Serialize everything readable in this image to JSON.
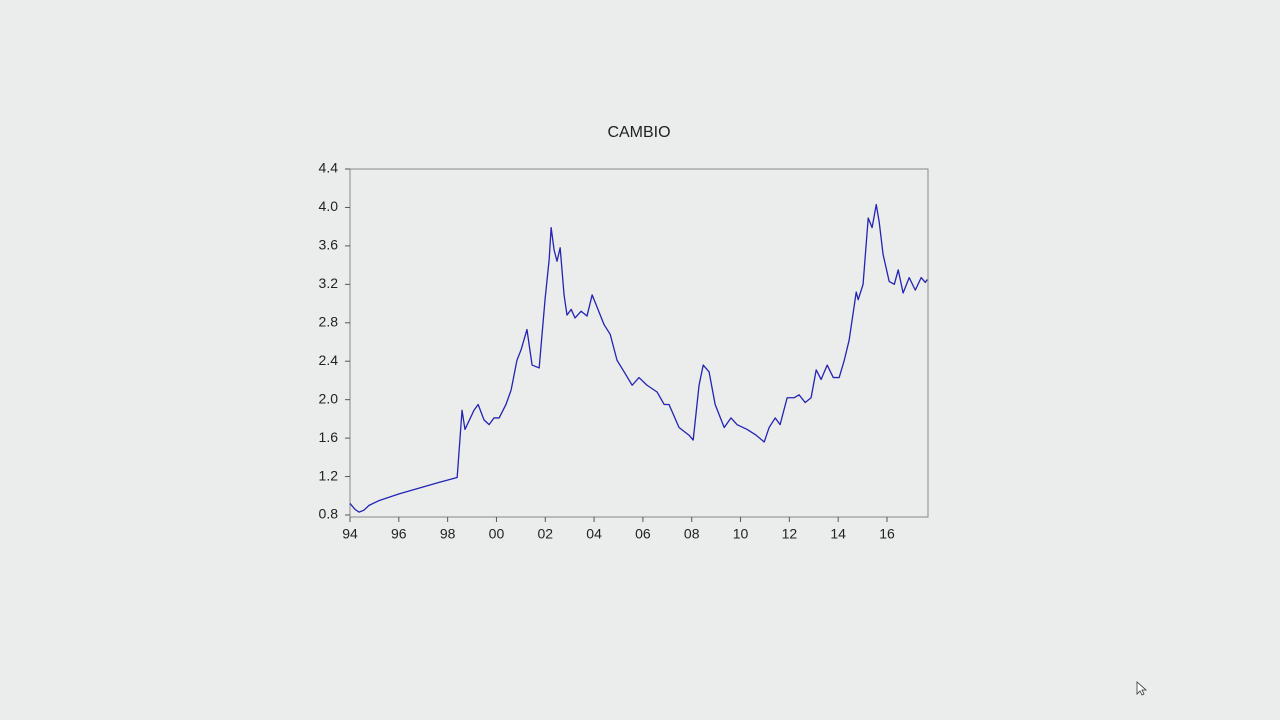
{
  "chart_data": {
    "type": "line",
    "title": "CAMBIO",
    "x": [
      1994.0,
      1994.2,
      1994.37,
      1994.57,
      1994.78,
      1995.19,
      1996.01,
      1996.83,
      1997.65,
      1998.39,
      1998.59,
      1998.71,
      1999.08,
      1999.25,
      1999.49,
      1999.7,
      1999.9,
      2000.11,
      2000.39,
      2000.6,
      2000.84,
      2001.01,
      2001.25,
      2001.46,
      2001.75,
      2001.99,
      2002.16,
      2002.24,
      2002.36,
      2002.48,
      2002.61,
      2002.77,
      2002.89,
      2003.06,
      2003.22,
      2003.47,
      2003.71,
      2003.92,
      2004.08,
      2004.41,
      2004.66,
      2004.94,
      2005.23,
      2005.56,
      2005.84,
      2006.17,
      2006.58,
      2006.87,
      2007.07,
      2007.48,
      2007.89,
      2008.06,
      2008.3,
      2008.47,
      2008.71,
      2008.96,
      2009.33,
      2009.61,
      2009.86,
      2010.27,
      2010.64,
      2010.97,
      2011.17,
      2011.42,
      2011.62,
      2011.91,
      2012.2,
      2012.4,
      2012.65,
      2012.89,
      2013.1,
      2013.3,
      2013.55,
      2013.8,
      2014.04,
      2014.25,
      2014.45,
      2014.74,
      2014.82,
      2015.02,
      2015.23,
      2015.39,
      2015.56,
      2015.68,
      2015.84,
      2016.09,
      2016.3,
      2016.46,
      2016.66,
      2016.91,
      2017.16,
      2017.4,
      2017.57,
      2017.65
    ],
    "values": [
      0.92,
      0.86,
      0.83,
      0.85,
      0.9,
      0.95,
      1.02,
      1.08,
      1.14,
      1.19,
      1.89,
      1.69,
      1.89,
      1.95,
      1.79,
      1.74,
      1.81,
      1.81,
      1.95,
      2.1,
      2.41,
      2.52,
      2.73,
      2.36,
      2.33,
      3.04,
      3.46,
      3.79,
      3.56,
      3.44,
      3.58,
      3.09,
      2.88,
      2.94,
      2.85,
      2.92,
      2.87,
      3.09,
      2.99,
      2.78,
      2.68,
      2.41,
      2.29,
      2.15,
      2.23,
      2.15,
      2.08,
      1.95,
      1.95,
      1.71,
      1.63,
      1.58,
      2.15,
      2.36,
      2.29,
      1.95,
      1.71,
      1.81,
      1.74,
      1.69,
      1.63,
      1.56,
      1.71,
      1.81,
      1.74,
      2.02,
      2.02,
      2.05,
      1.97,
      2.02,
      2.31,
      2.21,
      2.36,
      2.23,
      2.23,
      2.41,
      2.62,
      3.12,
      3.04,
      3.2,
      3.89,
      3.79,
      4.03,
      3.85,
      3.51,
      3.23,
      3.2,
      3.35,
      3.11,
      3.27,
      3.14,
      3.27,
      3.22,
      3.25
    ],
    "color": "#2323b4",
    "xlim": [
      1994.0,
      2017.68
    ],
    "ylim": [
      0.8,
      4.4
    ],
    "xticks": [
      {
        "value": 1994,
        "label": "94"
      },
      {
        "value": 1996,
        "label": "96"
      },
      {
        "value": 1998,
        "label": "98"
      },
      {
        "value": 2000,
        "label": "00"
      },
      {
        "value": 2002,
        "label": "02"
      },
      {
        "value": 2004,
        "label": "04"
      },
      {
        "value": 2006,
        "label": "06"
      },
      {
        "value": 2008,
        "label": "08"
      },
      {
        "value": 2010,
        "label": "10"
      },
      {
        "value": 2012,
        "label": "12"
      },
      {
        "value": 2014,
        "label": "14"
      },
      {
        "value": 2016,
        "label": "16"
      }
    ],
    "yticks": [
      0.8,
      1.2,
      1.6,
      {
        "value": 2.0,
        "label": "2.0"
      },
      2.4,
      2.8,
      3.2,
      3.6,
      {
        "value": 4.0,
        "label": "4.0"
      },
      4.4
    ]
  }
}
